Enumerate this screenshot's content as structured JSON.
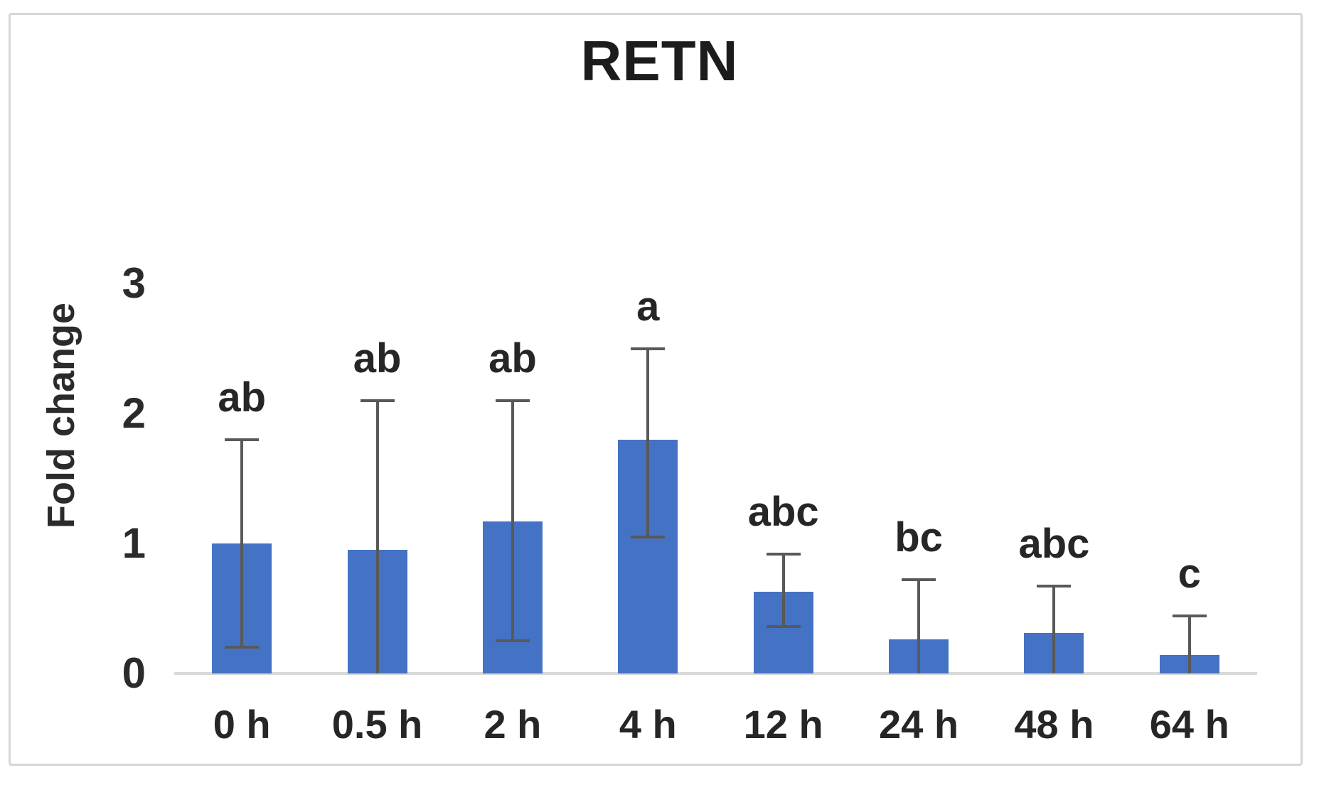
{
  "chart_data": {
    "type": "bar",
    "title": "RETN",
    "xlabel": "",
    "ylabel": "Fold change",
    "categories": [
      "0 h",
      "0.5 h",
      "2 h",
      "4 h",
      "12 h",
      "24 h",
      "48 h",
      "64 h"
    ],
    "values": [
      1.0,
      0.95,
      1.17,
      1.8,
      0.63,
      0.26,
      0.31,
      0.14
    ],
    "error_high": [
      1.8,
      2.1,
      2.1,
      2.5,
      0.92,
      0.72,
      0.67,
      0.44
    ],
    "error_low": [
      0.2,
      0.0,
      0.25,
      1.05,
      0.36,
      0.0,
      0.0,
      0.0
    ],
    "lower_cap_visible": [
      true,
      false,
      true,
      true,
      true,
      false,
      false,
      false
    ],
    "sig_letters": [
      "ab",
      "ab",
      "ab",
      "a",
      "abc",
      "bc",
      "abc",
      "c"
    ],
    "ylim": [
      0,
      3
    ],
    "yticks": [
      0,
      1,
      2,
      3
    ],
    "grid": false,
    "legend": "none",
    "bar_color": "#4472C4",
    "error_color": "#595959",
    "axis_color": "#D9D9D9",
    "text_color": "#262626"
  }
}
